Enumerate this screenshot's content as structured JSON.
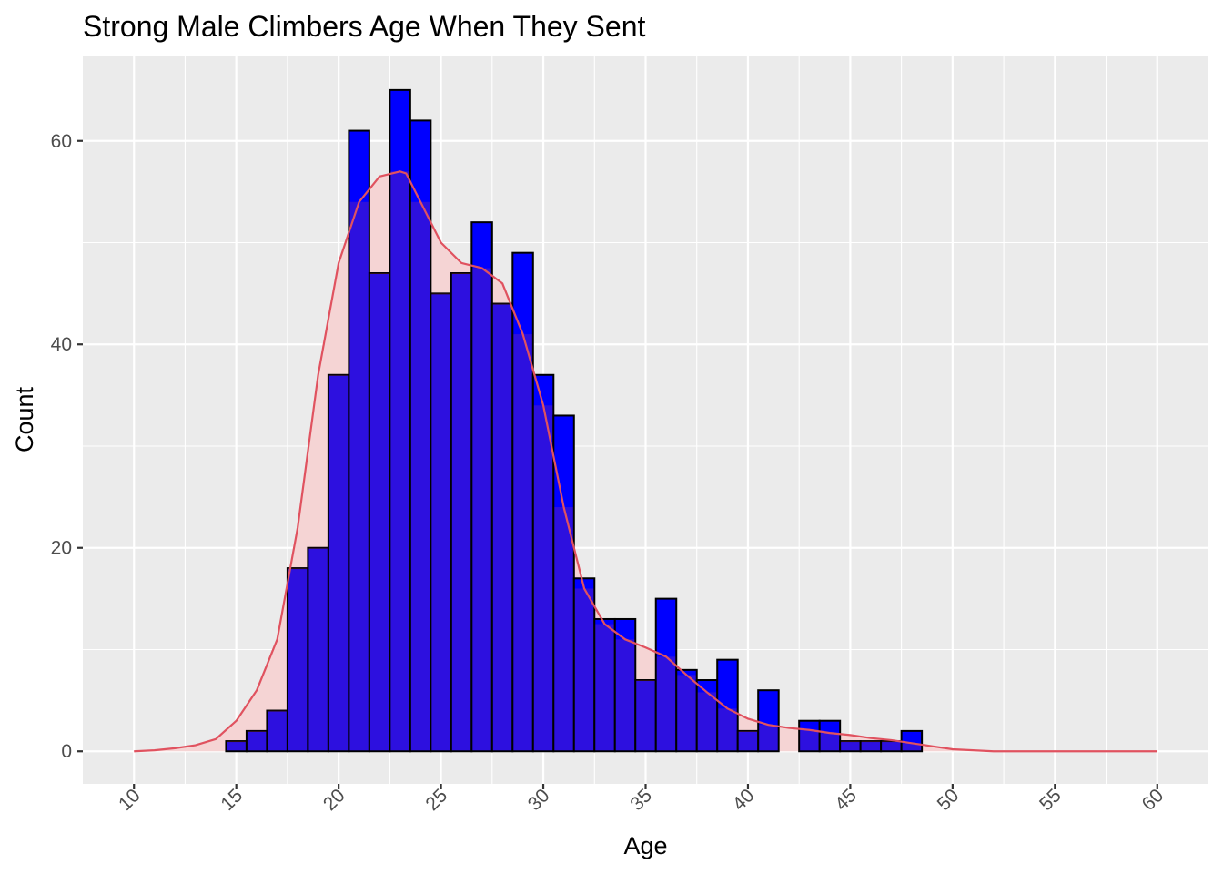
{
  "chart_data": {
    "type": "bar",
    "title": "Strong Male Climbers Age When They Sent",
    "xlabel": "Age",
    "ylabel": "Count",
    "xlim": [
      7.5,
      62.5
    ],
    "ylim": [
      -3.2,
      68.3
    ],
    "x_ticks": [
      10,
      15,
      20,
      25,
      30,
      35,
      40,
      45,
      50,
      55,
      60
    ],
    "y_ticks": [
      0,
      20,
      40,
      60
    ],
    "grid": true,
    "bin_width": 1,
    "bins": {
      "x_start": [
        13.5,
        14.5,
        15.5,
        16.5,
        17.5,
        18.5,
        19.5,
        20.5,
        21.5,
        22.5,
        23.5,
        24.5,
        25.5,
        26.5,
        27.5,
        28.5,
        29.5,
        30.5,
        31.5,
        32.5,
        33.5,
        34.5,
        35.5,
        36.5,
        37.5,
        38.5,
        39.5,
        40.5,
        41.5,
        42.5,
        43.5,
        44.5,
        45.5,
        46.5,
        47.5,
        48.5
      ],
      "x_end": [
        14.5,
        15.5,
        16.5,
        17.5,
        18.5,
        19.5,
        20.5,
        21.5,
        22.5,
        23.5,
        24.5,
        25.5,
        26.5,
        27.5,
        28.5,
        29.5,
        30.5,
        31.5,
        32.5,
        33.5,
        34.5,
        35.5,
        36.5,
        37.5,
        38.5,
        39.5,
        40.5,
        41.5,
        42.5,
        43.5,
        44.5,
        45.5,
        46.5,
        47.5,
        48.5,
        49.5
      ]
    },
    "series": [
      {
        "role": "histogram",
        "color": "#0000ff",
        "values": [
          0,
          1,
          2,
          4,
          18,
          20,
          37,
          61,
          47,
          65,
          62,
          45,
          47,
          52,
          44,
          49,
          37,
          33,
          17,
          13,
          13,
          7,
          15,
          8,
          7,
          9,
          2,
          6,
          0,
          3,
          3,
          1,
          1,
          1,
          2,
          0
        ]
      },
      {
        "role": "density",
        "color": "#e0525f",
        "fill": "#f5d4d4",
        "x": [
          10,
          11,
          12,
          13,
          14,
          15,
          16,
          17,
          18,
          19,
          20,
          21,
          22,
          23,
          23.3,
          24,
          25,
          26,
          27,
          28,
          29,
          30,
          31,
          32,
          33,
          34,
          35,
          36,
          37,
          38,
          39,
          40,
          41,
          42,
          43,
          44,
          45,
          46,
          47,
          48,
          49,
          50,
          51,
          52,
          53,
          55,
          60
        ],
        "values": [
          0,
          0.1,
          0.3,
          0.6,
          1.2,
          3,
          6,
          11,
          22,
          37,
          48,
          54,
          56.5,
          57,
          56.8,
          54,
          50,
          48,
          47.5,
          46,
          41,
          34,
          24,
          16,
          12.5,
          11,
          10.2,
          9.3,
          7.5,
          5.8,
          4.2,
          3.2,
          2.6,
          2.3,
          2.1,
          1.8,
          1.6,
          1.3,
          1.1,
          0.8,
          0.5,
          0.2,
          0.1,
          0,
          0,
          0,
          0
        ]
      }
    ]
  }
}
